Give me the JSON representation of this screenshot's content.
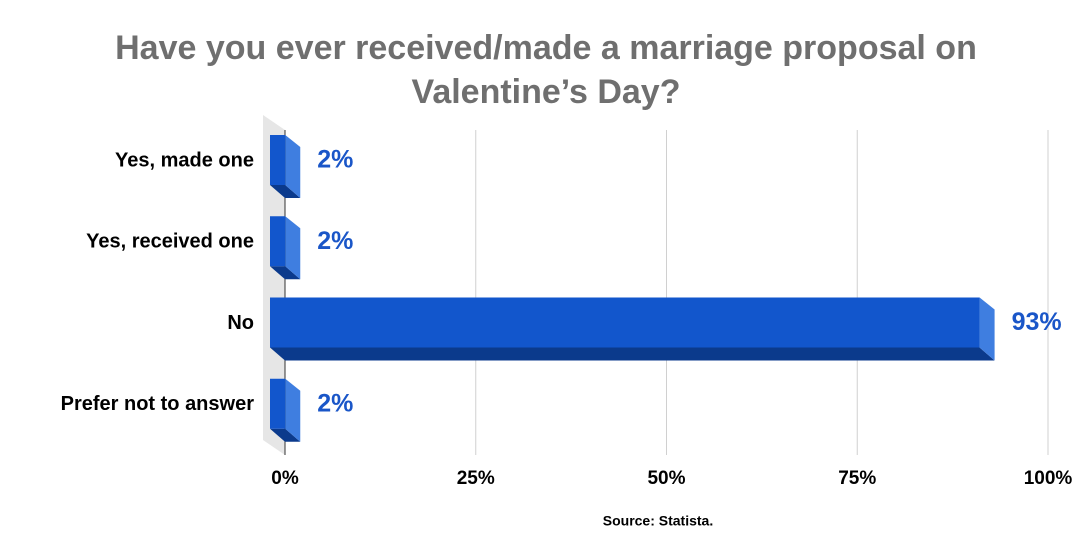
{
  "chart_data": {
    "type": "bar",
    "orientation": "horizontal",
    "title": "Have you ever received/made a marriage proposal on Valentine’s Day?",
    "categories": [
      "Yes, made one",
      "Yes, received one",
      "No",
      "Prefer not to answer"
    ],
    "values": [
      2,
      2,
      93,
      2
    ],
    "value_labels": [
      "2%",
      "2%",
      "93%",
      "2%"
    ],
    "color": "#1256cc",
    "xlim": [
      0,
      100
    ],
    "xticks": [
      {
        "value": 0,
        "label": "0%"
      },
      {
        "value": 25,
        "label": "25%"
      },
      {
        "value": 50,
        "label": "50%"
      },
      {
        "value": 75,
        "label": "75%"
      },
      {
        "value": 100,
        "label": "100%"
      }
    ],
    "grid": true,
    "source": "Source: Statista."
  }
}
